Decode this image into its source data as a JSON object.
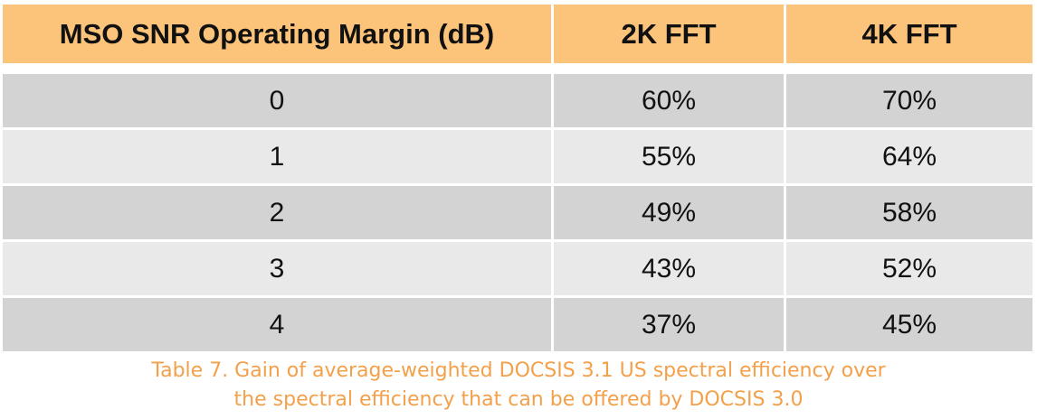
{
  "chart_data": {
    "type": "table",
    "columns": [
      "MSO SNR Operating Margin (dB)",
      "2K FFT",
      "4K FFT"
    ],
    "rows": [
      [
        "0",
        "60%",
        "70%"
      ],
      [
        "1",
        "55%",
        "64%"
      ],
      [
        "2",
        "49%",
        "58%"
      ],
      [
        "3",
        "43%",
        "52%"
      ],
      [
        "4",
        "37%",
        "45%"
      ]
    ],
    "caption_lines": [
      "Table 7. Gain of average-weighted DOCSIS 3.1 US spectral efficiency over",
      "the spectral efficiency that can be offered by DOCSIS 3.0"
    ],
    "colors": {
      "header_bg": "#fbc47a",
      "row_dark": "#d3d3d3",
      "row_light": "#e9e9e9",
      "caption": "#f3a04a"
    }
  }
}
